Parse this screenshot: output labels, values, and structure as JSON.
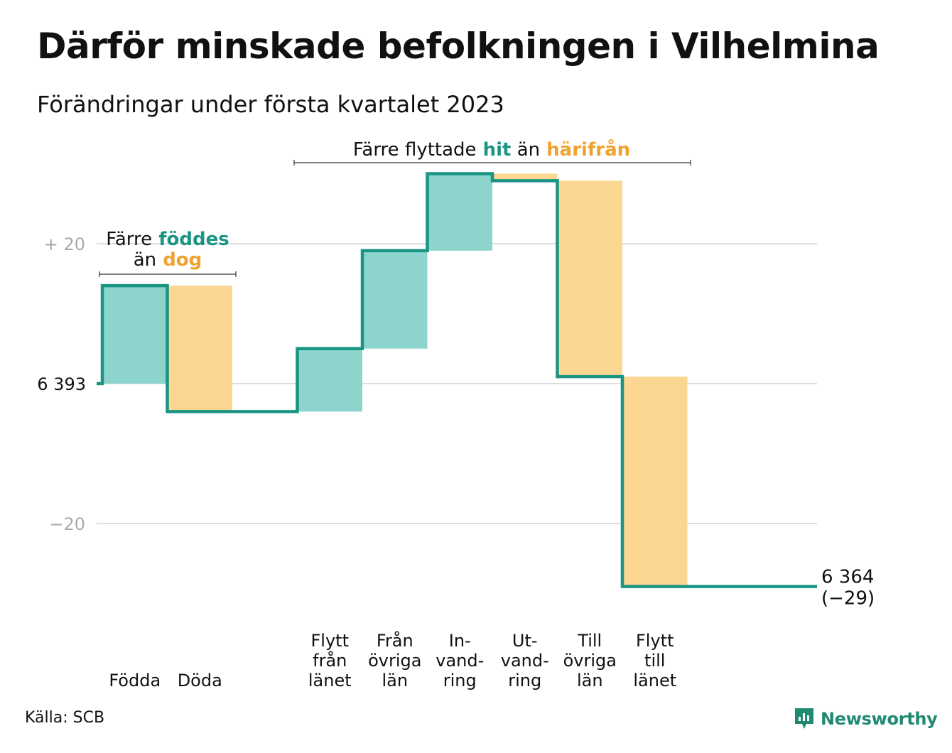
{
  "title": "Därför minskade befolkningen i Vilhelmina",
  "subtitle": "Förändringar under första kvartalet 2023",
  "source": "Källa: SCB",
  "logo_text": "Newsworthy",
  "colors": {
    "in": "#8dd5cc",
    "out": "#fbd792",
    "line": "#1a9483",
    "accent_in": "#1a9483",
    "accent_out": "#f0a22e",
    "grid": "#dddddd",
    "tick": "#aaaaaa"
  },
  "annotations": {
    "births": {
      "line1_plain": "Färre",
      "line1_in": "föddes",
      "line2_plain": "än",
      "line2_out": "dog"
    },
    "migration": {
      "plain1": "Färre flyttade",
      "in": "hit",
      "plain2": "än",
      "out": "härifrån"
    }
  },
  "chart_data": {
    "type": "waterfall",
    "start_value": 6393,
    "start_label": "6 393",
    "end_value": 6364,
    "end_label": "6 364",
    "end_change_label": "(−29)",
    "yticks": [
      {
        "value": 20,
        "label": "+ 20"
      },
      {
        "value": -20,
        "label": "−20"
      }
    ],
    "ylim": [
      -30,
      45
    ],
    "steps": [
      {
        "label": [
          "Födda"
        ],
        "change": 14,
        "kind": "in"
      },
      {
        "label": [
          "Döda"
        ],
        "change": -18,
        "kind": "out"
      },
      {
        "label": [],
        "change": 0,
        "kind": "gap"
      },
      {
        "label": [
          "Flytt",
          "från",
          "länet"
        ],
        "change": 9,
        "kind": "in"
      },
      {
        "label": [
          "Från",
          "övriga",
          "län"
        ],
        "change": 14,
        "kind": "in"
      },
      {
        "label": [
          "In-",
          "vand-",
          "ring"
        ],
        "change": 11,
        "kind": "in"
      },
      {
        "label": [
          "Ut-",
          "vand-",
          "ring"
        ],
        "change": -1,
        "kind": "out"
      },
      {
        "label": [
          "Till",
          "övriga",
          "län"
        ],
        "change": -28,
        "kind": "out"
      },
      {
        "label": [
          "Flytt",
          "till",
          "länet"
        ],
        "change": -30,
        "kind": "out"
      }
    ]
  }
}
